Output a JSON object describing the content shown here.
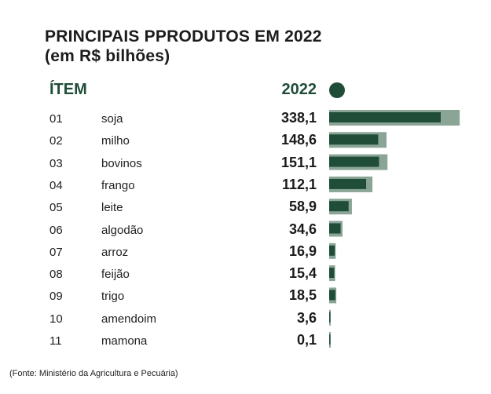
{
  "title_line1": "PRINCIPAIS PPRODUTOS EM 2022",
  "title_line2": "(em R$ bilhões)",
  "header_item": "ÍTEM",
  "header_year": "2022",
  "source": "(Fonte: Ministério da Agricultura e Pecuária)",
  "colors": {
    "dark": "#1f4d38",
    "light": "#8aa596"
  },
  "chart_data": {
    "type": "bar",
    "orientation": "horizontal",
    "categories": [
      "soja",
      "milho",
      "bovinos",
      "frango",
      "leite",
      "algodão",
      "arroz",
      "feijão",
      "trigo",
      "amendoim",
      "mamona"
    ],
    "item_numbers": [
      "01",
      "02",
      "03",
      "04",
      "05",
      "06",
      "07",
      "08",
      "09",
      "10",
      "11"
    ],
    "values": [
      338.1,
      148.6,
      151.1,
      112.1,
      58.9,
      34.6,
      16.9,
      15.4,
      18.5,
      3.6,
      0.1
    ],
    "value_labels": [
      "338,1",
      "148,6",
      "151,1",
      "112,1",
      "58,9",
      "34,6",
      "16,9",
      "15,4",
      "18,5",
      "3,6",
      "0,1"
    ],
    "series": [
      {
        "name": "2022",
        "values": [
          338.1,
          148.6,
          151.1,
          112.1,
          58.9,
          34.6,
          16.9,
          15.4,
          18.5,
          3.6,
          0.1
        ]
      }
    ],
    "grid": false
  }
}
